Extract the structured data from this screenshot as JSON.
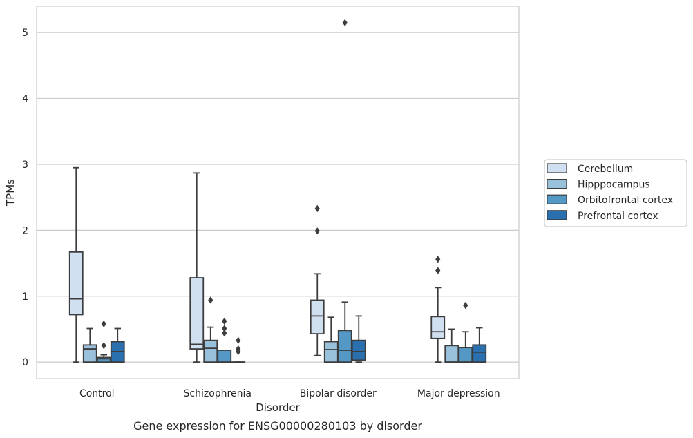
{
  "chart_data": {
    "type": "box",
    "caption": "Gene expression for ENSG00000280103 by disorder",
    "xlabel": "Disorder",
    "ylabel": "TPMs",
    "ylim": [
      -0.25,
      5.4
    ],
    "yticks": [
      0,
      1,
      2,
      3,
      4,
      5
    ],
    "categories": [
      "Control",
      "Schizophrenia",
      "Bipolar disorder",
      "Major depression"
    ],
    "grid": "horizontal",
    "legend_position": "right",
    "series": [
      {
        "name": "Cerebellum",
        "color": "#d1e0f0",
        "boxes": [
          {
            "whisker_low": 0.0,
            "q1": 0.72,
            "median": 0.96,
            "q3": 1.67,
            "whisker_high": 2.95,
            "outliers": []
          },
          {
            "whisker_low": 0.0,
            "q1": 0.2,
            "median": 0.27,
            "q3": 1.28,
            "whisker_high": 2.87,
            "outliers": []
          },
          {
            "whisker_low": 0.1,
            "q1": 0.43,
            "median": 0.7,
            "q3": 0.94,
            "whisker_high": 1.34,
            "outliers": [
              1.99,
              2.33
            ]
          },
          {
            "whisker_low": 0.0,
            "q1": 0.36,
            "median": 0.46,
            "q3": 0.69,
            "whisker_high": 1.13,
            "outliers": [
              1.39,
              1.56
            ]
          }
        ]
      },
      {
        "name": "Hipppocampus",
        "color": "#9ac1dc",
        "boxes": [
          {
            "whisker_low": 0.0,
            "q1": 0.0,
            "median": 0.2,
            "q3": 0.26,
            "whisker_high": 0.51,
            "outliers": []
          },
          {
            "whisker_low": 0.0,
            "q1": 0.0,
            "median": 0.21,
            "q3": 0.33,
            "whisker_high": 0.53,
            "outliers": [
              0.94
            ]
          },
          {
            "whisker_low": 0.0,
            "q1": 0.0,
            "median": 0.19,
            "q3": 0.31,
            "whisker_high": 0.68,
            "outliers": []
          },
          {
            "whisker_low": 0.0,
            "q1": 0.0,
            "median": 0.0,
            "q3": 0.25,
            "whisker_high": 0.5,
            "outliers": []
          }
        ]
      },
      {
        "name": "Orbitofrontal cortex",
        "color": "#5498c6",
        "boxes": [
          {
            "whisker_low": 0.0,
            "q1": 0.0,
            "median": 0.05,
            "q3": 0.07,
            "whisker_high": 0.11,
            "outliers": [
              0.25,
              0.58
            ]
          },
          {
            "whisker_low": 0.0,
            "q1": 0.0,
            "median": 0.0,
            "q3": 0.18,
            "whisker_high": 0.18,
            "outliers": [
              0.44,
              0.51,
              0.62
            ]
          },
          {
            "whisker_low": 0.0,
            "q1": 0.0,
            "median": 0.18,
            "q3": 0.48,
            "whisker_high": 0.91,
            "outliers": [
              5.15
            ]
          },
          {
            "whisker_low": 0.0,
            "q1": 0.0,
            "median": 0.0,
            "q3": 0.22,
            "whisker_high": 0.46,
            "outliers": [
              0.86
            ]
          }
        ]
      },
      {
        "name": "Prefrontal cortex",
        "color": "#2a6fae",
        "boxes": [
          {
            "whisker_low": 0.0,
            "q1": 0.0,
            "median": 0.16,
            "q3": 0.31,
            "whisker_high": 0.51,
            "outliers": []
          },
          {
            "whisker_low": 0.0,
            "q1": 0.0,
            "median": 0.0,
            "q3": 0.0,
            "whisker_high": 0.0,
            "outliers": [
              0.16,
              0.2,
              0.33
            ]
          },
          {
            "whisker_low": 0.0,
            "q1": 0.03,
            "median": 0.16,
            "q3": 0.33,
            "whisker_high": 0.7,
            "outliers": []
          },
          {
            "whisker_low": 0.0,
            "q1": 0.0,
            "median": 0.15,
            "q3": 0.26,
            "whisker_high": 0.52,
            "outliers": []
          }
        ]
      }
    ]
  }
}
